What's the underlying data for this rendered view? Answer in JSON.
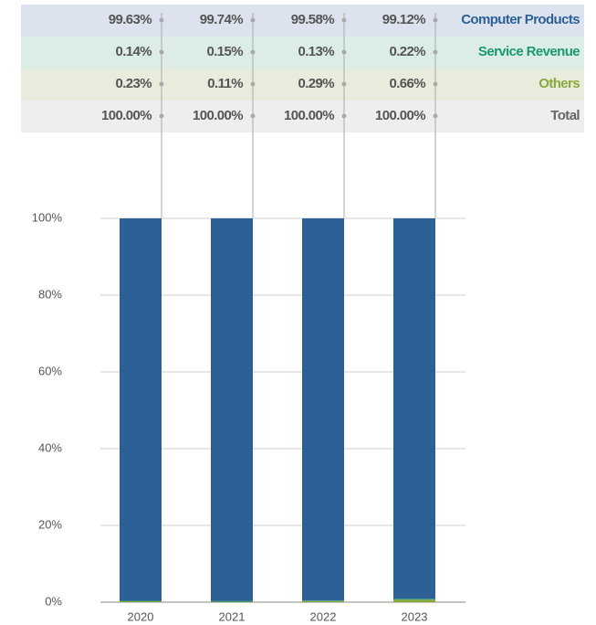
{
  "chart_data": {
    "type": "stacked_bar",
    "categories": [
      "2020",
      "2021",
      "2022",
      "2023"
    ],
    "series": [
      {
        "name": "Computer Products",
        "color": "#2c6096",
        "values": [
          99.63,
          99.74,
          99.58,
          99.12
        ],
        "value_labels": [
          "99.63%",
          "99.74%",
          "99.58%",
          "99.12%"
        ]
      },
      {
        "name": "Service Revenue",
        "color": "#1a9a6c",
        "values": [
          0.14,
          0.15,
          0.13,
          0.22
        ],
        "value_labels": [
          "0.14%",
          "0.15%",
          "0.13%",
          "0.22%"
        ]
      },
      {
        "name": "Others",
        "color": "#8aa83c",
        "values": [
          0.23,
          0.11,
          0.29,
          0.66
        ],
        "value_labels": [
          "0.23%",
          "0.11%",
          "0.29%",
          "0.66%"
        ]
      }
    ],
    "total": {
      "name": "Total",
      "values": [
        100,
        100,
        100,
        100
      ],
      "value_labels": [
        "100.00%",
        "100.00%",
        "100.00%",
        "100.00%"
      ]
    },
    "ylim": [
      0,
      100
    ],
    "yticks": [
      {
        "value": 0,
        "label": "0%"
      },
      {
        "value": 20,
        "label": "20%"
      },
      {
        "value": 40,
        "label": "40%"
      },
      {
        "value": 60,
        "label": "60%"
      },
      {
        "value": 80,
        "label": "80%"
      },
      {
        "value": 100,
        "label": "100%"
      }
    ],
    "grid": true
  }
}
